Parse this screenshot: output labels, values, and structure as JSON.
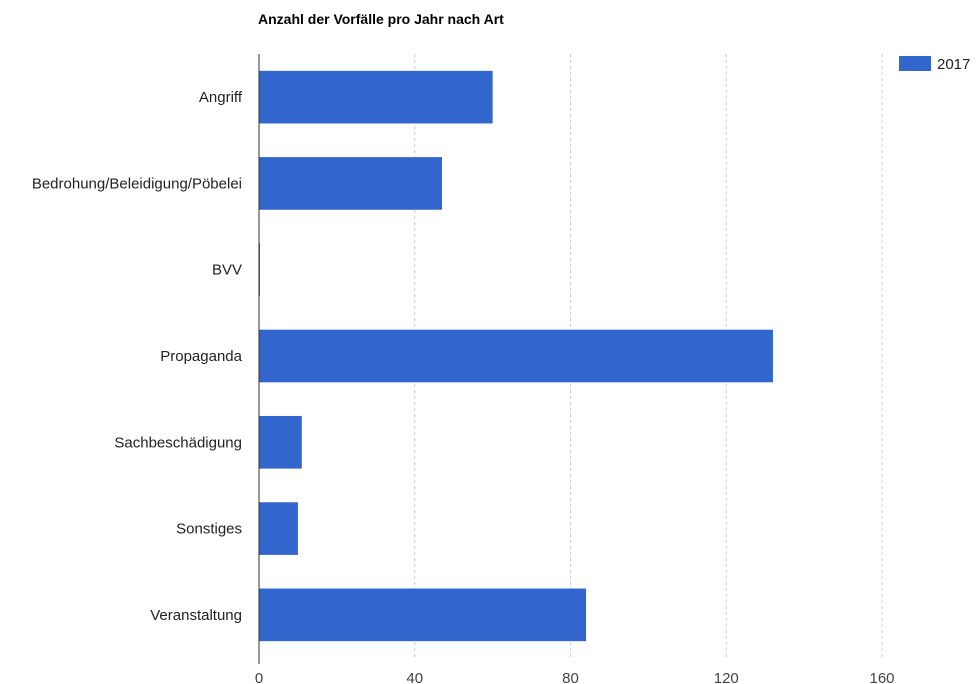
{
  "chart_data": {
    "type": "bar",
    "orientation": "horizontal",
    "title": "Anzahl der Vorfälle pro Jahr nach Art",
    "categories": [
      "Angriff",
      "Bedrohung/Beleidigung/Pöbelei",
      "BVV",
      "Propaganda",
      "Sachbeschädigung",
      "Sonstiges",
      "Veranstaltung"
    ],
    "series": [
      {
        "name": "2017",
        "values": [
          60,
          47,
          0,
          132,
          11,
          10,
          84
        ],
        "color": "#3366cc"
      }
    ],
    "xlim": [
      0,
      160
    ],
    "xticks": [
      0,
      40,
      80,
      120,
      160
    ],
    "grid": true,
    "legend": "top-right",
    "xlabel": "",
    "ylabel": ""
  }
}
